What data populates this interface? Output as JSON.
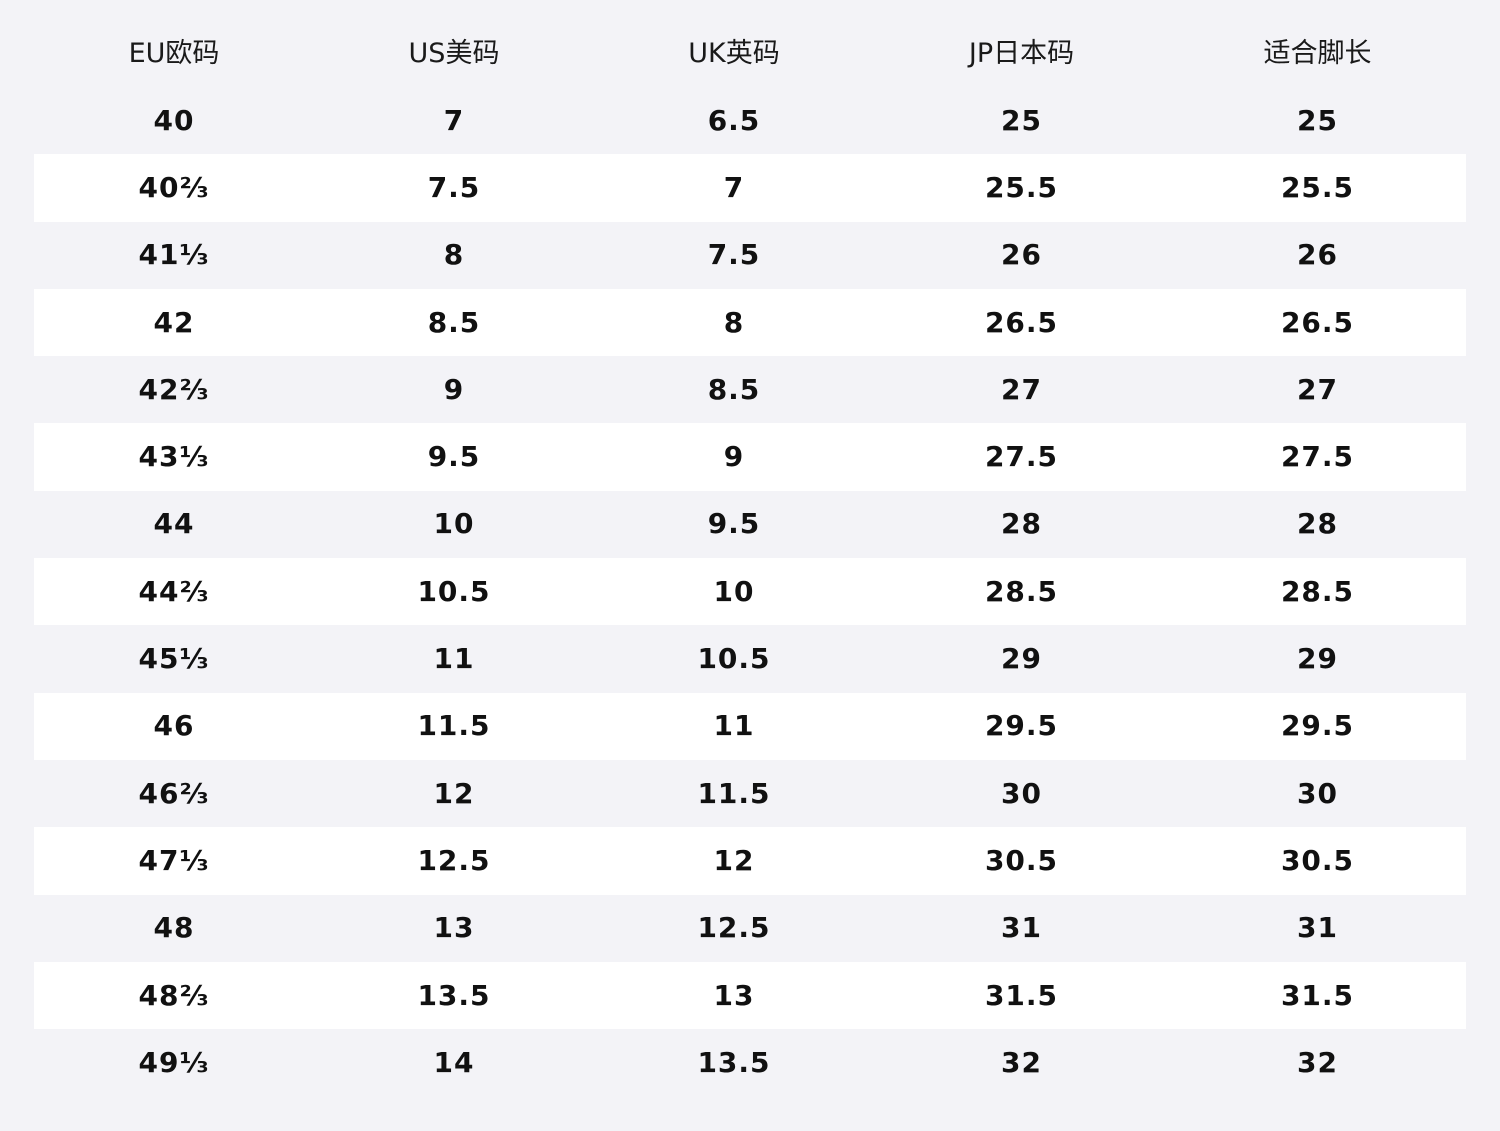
{
  "table": {
    "headers": [
      "EU欧码",
      "US美码",
      "UK英码",
      "JP日本码",
      "适合脚长"
    ],
    "rows": [
      [
        "40",
        "7",
        "6.5",
        "25",
        "25"
      ],
      [
        "40⅔",
        "7.5",
        "7",
        "25.5",
        "25.5"
      ],
      [
        "41⅓",
        "8",
        "7.5",
        "26",
        "26"
      ],
      [
        "42",
        "8.5",
        "8",
        "26.5",
        "26.5"
      ],
      [
        "42⅔",
        "9",
        "8.5",
        "27",
        "27"
      ],
      [
        "43⅓",
        "9.5",
        "9",
        "27.5",
        "27.5"
      ],
      [
        "44",
        "10",
        "9.5",
        "28",
        "28"
      ],
      [
        "44⅔",
        "10.5",
        "10",
        "28.5",
        "28.5"
      ],
      [
        "45⅓",
        "11",
        "10.5",
        "29",
        "29"
      ],
      [
        "46",
        "11.5",
        "11",
        "29.5",
        "29.5"
      ],
      [
        "46⅔",
        "12",
        "11.5",
        "30",
        "30"
      ],
      [
        "47⅓",
        "12.5",
        "12",
        "30.5",
        "30.5"
      ],
      [
        "48",
        "13",
        "12.5",
        "31",
        "31"
      ],
      [
        "48⅔",
        "13.5",
        "13",
        "31.5",
        "31.5"
      ],
      [
        "49⅓",
        "14",
        "13.5",
        "32",
        "32"
      ]
    ]
  }
}
